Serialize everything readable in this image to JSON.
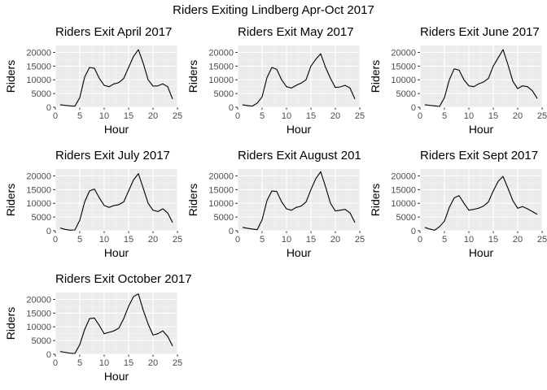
{
  "page_title": "Riders Exiting Lindberg Apr-Oct 2017",
  "chart_data": [
    {
      "type": "line",
      "title": "Riders Exit April 2017",
      "xlabel": "Hour",
      "ylabel": "Riders",
      "xlim": [
        0,
        25
      ],
      "ylim": [
        0,
        22500
      ],
      "xticks": [
        "0",
        "5",
        "10",
        "15",
        "20",
        "25"
      ],
      "yticks": [
        "0",
        "5000",
        "10000",
        "15000",
        "20000"
      ],
      "grid": true,
      "x": [
        1,
        2,
        3,
        4,
        5,
        6,
        7,
        8,
        9,
        10,
        11,
        12,
        13,
        14,
        15,
        16,
        17,
        18,
        19,
        20,
        21,
        22,
        23,
        24
      ],
      "y": [
        900,
        700,
        500,
        400,
        3500,
        11000,
        14500,
        14200,
        10500,
        8000,
        7500,
        8500,
        9000,
        10500,
        14500,
        18500,
        21000,
        16000,
        10000,
        7700,
        7800,
        8500,
        7500,
        3000
      ]
    },
    {
      "type": "line",
      "title": "Riders Exit May 2017",
      "xlabel": "Hour",
      "ylabel": "Riders",
      "xlim": [
        0,
        25
      ],
      "ylim": [
        0,
        22500
      ],
      "xticks": [
        "0",
        "5",
        "10",
        "15",
        "20",
        "25"
      ],
      "yticks": [
        "0",
        "5000",
        "10000",
        "15000",
        "20000"
      ],
      "grid": true,
      "x": [
        1,
        2,
        3,
        4,
        5,
        6,
        7,
        8,
        9,
        10,
        11,
        12,
        13,
        14,
        15,
        16,
        17,
        18,
        19,
        20,
        21,
        22,
        23,
        24
      ],
      "y": [
        900,
        600,
        400,
        1500,
        3800,
        10800,
        14500,
        13800,
        10000,
        7500,
        7000,
        8000,
        8800,
        10000,
        15000,
        17500,
        19500,
        14500,
        10500,
        7200,
        7400,
        8000,
        7000,
        3000
      ]
    },
    {
      "type": "line",
      "title": "Riders Exit June 2017",
      "xlabel": "Hour",
      "ylabel": "Riders",
      "xlim": [
        0,
        25
      ],
      "ylim": [
        0,
        22500
      ],
      "xticks": [
        "0",
        "5",
        "10",
        "15",
        "20",
        "25"
      ],
      "yticks": [
        "0",
        "5000",
        "10000",
        "15000",
        "20000"
      ],
      "grid": true,
      "x": [
        1,
        2,
        3,
        4,
        5,
        6,
        7,
        8,
        9,
        10,
        11,
        12,
        13,
        14,
        15,
        16,
        17,
        18,
        19,
        20,
        21,
        22,
        23,
        24
      ],
      "y": [
        900,
        700,
        500,
        300,
        3500,
        10000,
        14000,
        13500,
        10000,
        7800,
        7500,
        8500,
        9200,
        10500,
        15000,
        18000,
        21000,
        15500,
        9500,
        6800,
        7800,
        7500,
        6000,
        3200
      ]
    },
    {
      "type": "line",
      "title": "Riders Exit July 2017",
      "xlabel": "Hour",
      "ylabel": "Riders",
      "xlim": [
        0,
        25
      ],
      "ylim": [
        0,
        22500
      ],
      "xticks": [
        "0",
        "5",
        "10",
        "15",
        "20",
        "25"
      ],
      "yticks": [
        "0",
        "5000",
        "10000",
        "15000",
        "20000"
      ],
      "grid": true,
      "x": [
        1,
        2,
        3,
        4,
        5,
        6,
        7,
        8,
        9,
        10,
        11,
        12,
        13,
        14,
        15,
        16,
        17,
        18,
        19,
        20,
        21,
        22,
        23,
        24
      ],
      "y": [
        1000,
        500,
        200,
        300,
        3800,
        10500,
        14500,
        15200,
        12000,
        9200,
        8500,
        9200,
        9500,
        10500,
        14500,
        18500,
        20800,
        15500,
        10000,
        7500,
        7000,
        8000,
        6500,
        3000
      ]
    },
    {
      "type": "line",
      "title": "Riders Exit August 201",
      "xlabel": "Hour",
      "ylabel": "Riders",
      "xlim": [
        0,
        25
      ],
      "ylim": [
        0,
        22500
      ],
      "xticks": [
        "0",
        "5",
        "10",
        "15",
        "20",
        "25"
      ],
      "yticks": [
        "0",
        "5000",
        "10000",
        "15000",
        "20000"
      ],
      "grid": true,
      "x": [
        1,
        2,
        3,
        4,
        5,
        6,
        7,
        8,
        9,
        10,
        11,
        12,
        13,
        14,
        15,
        16,
        17,
        18,
        19,
        20,
        21,
        22,
        23,
        24
      ],
      "y": [
        1200,
        900,
        600,
        400,
        4000,
        11000,
        14500,
        14300,
        10500,
        8000,
        7500,
        8500,
        9000,
        10500,
        15000,
        19000,
        21500,
        16000,
        10000,
        7200,
        7500,
        7800,
        6500,
        3000
      ]
    },
    {
      "type": "line",
      "title": "Riders Exit Sept 2017",
      "xlabel": "Hour",
      "ylabel": "Riders",
      "xlim": [
        0,
        25
      ],
      "ylim": [
        0,
        22500
      ],
      "xticks": [
        "0",
        "5",
        "10",
        "15",
        "20",
        "25"
      ],
      "yticks": [
        "0",
        "5000",
        "10000",
        "15000",
        "20000"
      ],
      "grid": true,
      "x": [
        1,
        2,
        3,
        4,
        5,
        6,
        7,
        8,
        9,
        10,
        11,
        12,
        13,
        14,
        15,
        16,
        17,
        18,
        19,
        20,
        21,
        22,
        23,
        24
      ],
      "y": [
        1200,
        600,
        200,
        1500,
        3500,
        8500,
        12000,
        12800,
        10000,
        7500,
        7800,
        8200,
        9000,
        10500,
        14500,
        18000,
        19800,
        15500,
        11000,
        8200,
        8800,
        8000,
        7000,
        6000
      ]
    },
    {
      "type": "line",
      "title": "Riders Exit October 2017",
      "xlabel": "Hour",
      "ylabel": "Riders",
      "xlim": [
        0,
        25
      ],
      "ylim": [
        0,
        22500
      ],
      "xticks": [
        "0",
        "5",
        "10",
        "15",
        "20",
        "25"
      ],
      "yticks": [
        "0",
        "5000",
        "10000",
        "15000",
        "20000"
      ],
      "grid": true,
      "x": [
        1,
        2,
        3,
        4,
        5,
        6,
        7,
        8,
        9,
        10,
        11,
        12,
        13,
        14,
        15,
        16,
        17,
        18,
        19,
        20,
        21,
        22,
        23,
        24
      ],
      "y": [
        1000,
        700,
        400,
        300,
        3500,
        9000,
        13000,
        13200,
        10500,
        7500,
        8000,
        8500,
        9500,
        13000,
        17500,
        21000,
        22000,
        16000,
        11000,
        7000,
        7500,
        8500,
        6500,
        3000
      ]
    }
  ]
}
